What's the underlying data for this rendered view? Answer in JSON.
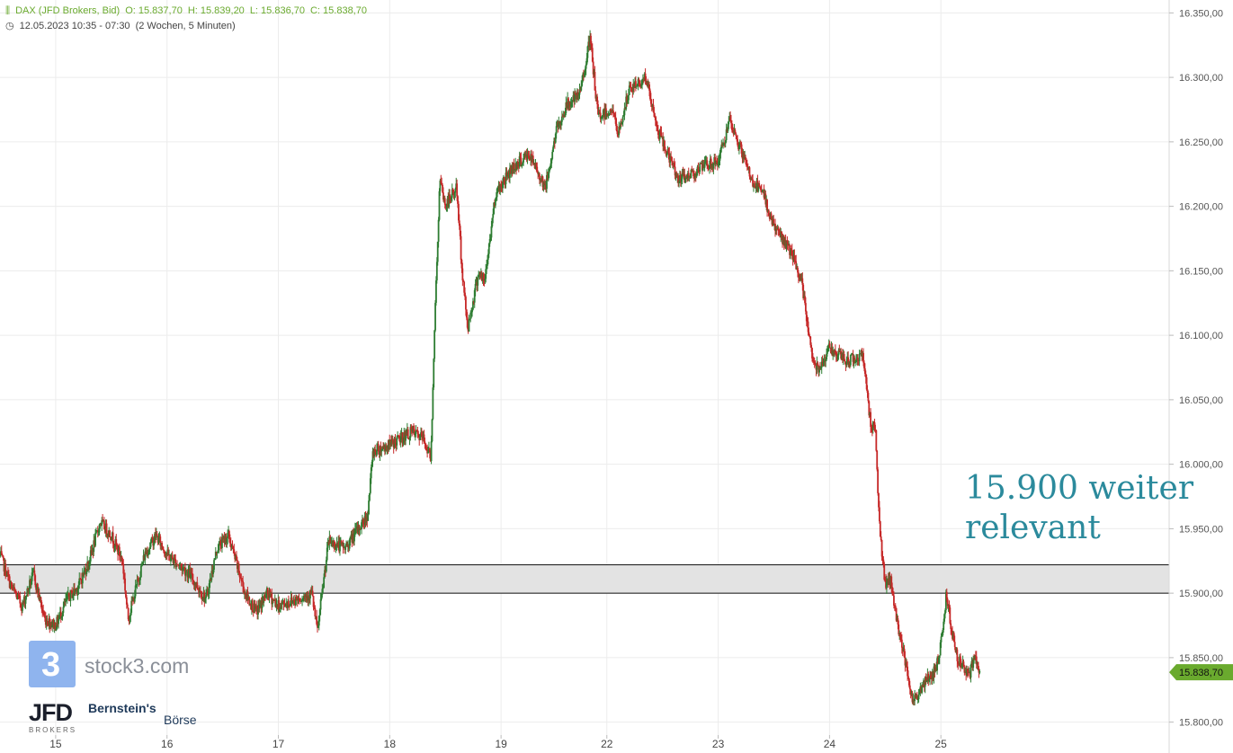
{
  "header": {
    "instrument": "DAX (JFD Brokers, Bid)",
    "open": "O: 15.837,70",
    "high": "H: 15.839,20",
    "low": "L: 15.836,70",
    "close": "C: 15.838,70",
    "timerange": "12.05.2023 10:35 - 07:30",
    "period": "(2 Wochen, 5 Minuten)",
    "icon_bars": "candlestick-icon",
    "icon_clock": "clock-icon"
  },
  "annotation": {
    "line1": "15.900 weiter",
    "line2": "relevant"
  },
  "logos": {
    "stock3_glyph": "3",
    "stock3_text": "stock3.com",
    "jfd": "JFD",
    "jfd_sub": "BROKERS",
    "bernstein": "Bernstein's",
    "boerse": "Börse"
  },
  "colors": {
    "up": "#2e7d32",
    "down": "#c62828",
    "price_tag": "#6aaa2e",
    "zone": "#e3e3e3",
    "annotation": "#2b8a9c"
  },
  "chart_data": {
    "type": "candlestick",
    "instrument": "DAX (JFD Brokers, Bid)",
    "ylim": [
      15790,
      16360
    ],
    "y_ticks": [
      "16.350,00",
      "16.300,00",
      "16.250,00",
      "16.200,00",
      "16.150,00",
      "16.100,00",
      "16.050,00",
      "16.000,00",
      "15.950,00",
      "15.900,00",
      "15.850,00",
      "15.800,00"
    ],
    "y_tick_values": [
      16350,
      16300,
      16250,
      16200,
      16150,
      16100,
      16050,
      16000,
      15950,
      15900,
      15850,
      15800
    ],
    "x_ticks": [
      "15",
      "16",
      "17",
      "18",
      "19",
      "22",
      "23",
      "24",
      "25"
    ],
    "x_tick_index": [
      0.5,
      1.5,
      2.5,
      3.5,
      4.5,
      5.45,
      6.45,
      7.45,
      8.45
    ],
    "x_range": [
      0,
      10.5
    ],
    "current_price": "15.838,70",
    "current_value": 15838.7,
    "zone": [
      15900,
      15922
    ],
    "path": [
      [
        0,
        15930
      ],
      [
        0.1,
        15905
      ],
      [
        0.2,
        15890
      ],
      [
        0.3,
        15915
      ],
      [
        0.4,
        15880
      ],
      [
        0.5,
        15875
      ],
      [
        0.6,
        15895
      ],
      [
        0.7,
        15905
      ],
      [
        0.8,
        15925
      ],
      [
        0.9,
        15955
      ],
      [
        1.0,
        15945
      ],
      [
        1.1,
        15925
      ],
      [
        1.15,
        15880
      ],
      [
        1.3,
        15930
      ],
      [
        1.4,
        15945
      ],
      [
        1.5,
        15930
      ],
      [
        1.7,
        15915
      ],
      [
        1.85,
        15895
      ],
      [
        1.95,
        15935
      ],
      [
        2.05,
        15945
      ],
      [
        2.2,
        15900
      ],
      [
        2.3,
        15885
      ],
      [
        2.4,
        15900
      ],
      [
        2.5,
        15890
      ],
      [
        2.65,
        15895
      ],
      [
        2.8,
        15900
      ],
      [
        2.85,
        15870
      ],
      [
        2.95,
        15940
      ],
      [
        3.1,
        15935
      ],
      [
        3.3,
        15960
      ],
      [
        3.35,
        16010
      ],
      [
        3.5,
        16015
      ],
      [
        3.6,
        16020
      ],
      [
        3.7,
        16025
      ],
      [
        3.8,
        16020
      ],
      [
        3.87,
        16005
      ],
      [
        3.9,
        16100
      ],
      [
        3.95,
        16220
      ],
      [
        4.0,
        16200
      ],
      [
        4.1,
        16215
      ],
      [
        4.15,
        16150
      ],
      [
        4.2,
        16105
      ],
      [
        4.3,
        16150
      ],
      [
        4.35,
        16140
      ],
      [
        4.45,
        16210
      ],
      [
        4.6,
        16230
      ],
      [
        4.75,
        16240
      ],
      [
        4.9,
        16215
      ],
      [
        5.0,
        16260
      ],
      [
        5.1,
        16280
      ],
      [
        5.2,
        16285
      ],
      [
        5.3,
        16330
      ],
      [
        5.37,
        16270
      ],
      [
        5.5,
        16275
      ],
      [
        5.55,
        16255
      ],
      [
        5.65,
        16290
      ],
      [
        5.8,
        16300
      ],
      [
        5.9,
        16260
      ],
      [
        6.0,
        16240
      ],
      [
        6.1,
        16220
      ],
      [
        6.2,
        16225
      ],
      [
        6.3,
        16230
      ],
      [
        6.45,
        16235
      ],
      [
        6.55,
        16265
      ],
      [
        6.65,
        16245
      ],
      [
        6.75,
        16220
      ],
      [
        6.85,
        16210
      ],
      [
        6.95,
        16185
      ],
      [
        7.1,
        16165
      ],
      [
        7.2,
        16140
      ],
      [
        7.3,
        16080
      ],
      [
        7.35,
        16075
      ],
      [
        7.45,
        16090
      ],
      [
        7.6,
        16080
      ],
      [
        7.75,
        16085
      ],
      [
        7.82,
        16030
      ],
      [
        7.86,
        16030
      ],
      [
        7.9,
        15950
      ],
      [
        7.95,
        15905
      ],
      [
        8.0,
        15910
      ],
      [
        8.05,
        15880
      ],
      [
        8.15,
        15840
      ],
      [
        8.2,
        15815
      ],
      [
        8.3,
        15830
      ],
      [
        8.4,
        15840
      ],
      [
        8.45,
        15860
      ],
      [
        8.5,
        15900
      ],
      [
        8.55,
        15870
      ],
      [
        8.6,
        15850
      ],
      [
        8.7,
        15835
      ],
      [
        8.75,
        15850
      ],
      [
        8.8,
        15838.7
      ]
    ]
  }
}
